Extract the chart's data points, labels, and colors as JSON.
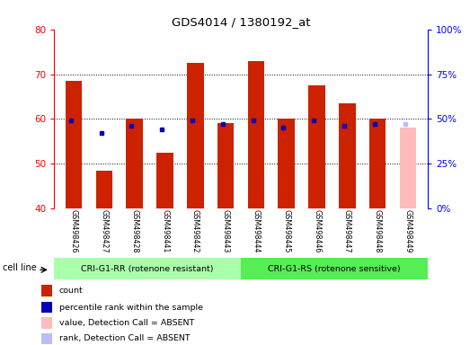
{
  "title": "GDS4014 / 1380192_at",
  "samples": [
    "GSM498426",
    "GSM498427",
    "GSM498428",
    "GSM498441",
    "GSM498442",
    "GSM498443",
    "GSM498444",
    "GSM498445",
    "GSM498446",
    "GSM498447",
    "GSM498448",
    "GSM498449"
  ],
  "count_values": [
    68.5,
    48.5,
    60.0,
    52.5,
    72.5,
    59.0,
    73.0,
    60.0,
    67.5,
    63.5,
    60.0,
    null
  ],
  "rank_pct": [
    49,
    null,
    46,
    44,
    49,
    47,
    49,
    45,
    49,
    46,
    47,
    null
  ],
  "absent_count": [
    null,
    null,
    null,
    null,
    null,
    null,
    null,
    null,
    null,
    null,
    null,
    58.0
  ],
  "absent_rank_pct": [
    null,
    null,
    null,
    null,
    null,
    null,
    null,
    null,
    null,
    null,
    null,
    47
  ],
  "gsm427_rank_pct": 42,
  "ylim_left": [
    40,
    80
  ],
  "ylim_right": [
    0,
    100
  ],
  "yticks_left": [
    40,
    50,
    60,
    70,
    80
  ],
  "yticks_right": [
    0,
    25,
    50,
    75,
    100
  ],
  "ytick_labels_right": [
    "0%",
    "25%",
    "50%",
    "75%",
    "100%"
  ],
  "group1_label": "CRI-G1-RR (rotenone resistant)",
  "group2_label": "CRI-G1-RS (rotenone sensitive)",
  "cell_line_label": "cell line",
  "legend_items": [
    {
      "label": "count",
      "color": "#cc2200"
    },
    {
      "label": "percentile rank within the sample",
      "color": "#0000bb"
    },
    {
      "label": "value, Detection Call = ABSENT",
      "color": "#ffbbbb"
    },
    {
      "label": "rank, Detection Call = ABSENT",
      "color": "#bbbbff"
    }
  ],
  "bar_color_count": "#cc2200",
  "bar_color_rank": "#0000bb",
  "bar_color_absent_count": "#ffbbbb",
  "bar_color_absent_rank": "#bbbbff",
  "group1_bg": "#aaffaa",
  "group2_bg": "#55ee55",
  "tick_bg": "#d8d8d8",
  "baseline": 40,
  "figsize": [
    5.23,
    3.84
  ],
  "dpi": 100
}
